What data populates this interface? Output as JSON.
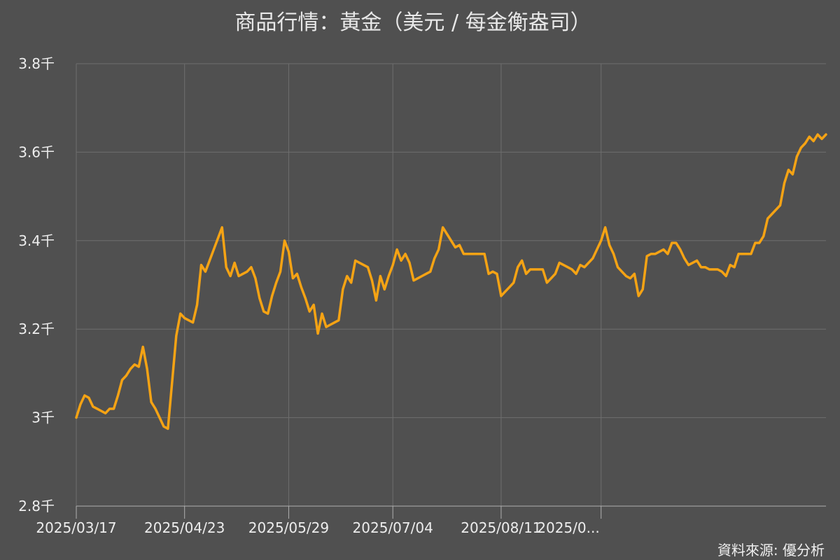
{
  "chart_data": {
    "type": "line",
    "title": "商品行情：黃金（美元 / 每金衡盎司）",
    "source": "資料來源: 優分析",
    "ylim": [
      2.8,
      3.8
    ],
    "y_ticks": [
      {
        "value": 2.8,
        "label": "2.8千"
      },
      {
        "value": 3.0,
        "label": "3千"
      },
      {
        "value": 3.2,
        "label": "3.2千"
      },
      {
        "value": 3.4,
        "label": "3.4千"
      },
      {
        "value": 3.6,
        "label": "3.6千"
      },
      {
        "value": 3.8,
        "label": "3.8千"
      }
    ],
    "x_ticks": [
      {
        "index": 0,
        "label": "2025/03/17"
      },
      {
        "index": 26,
        "label": "2025/04/23"
      },
      {
        "index": 51,
        "label": "2025/05/29"
      },
      {
        "index": 76,
        "label": "2025/07/04"
      },
      {
        "index": 102,
        "label": "2025/08/11"
      },
      {
        "index": 126,
        "label": "2025/0..."
      }
    ],
    "grid": true,
    "line_color": "#F5A314",
    "series": [
      {
        "values": [
          3.0,
          3.03,
          3.05,
          3.045,
          3.025,
          3.02,
          3.015,
          3.01,
          3.02,
          3.02,
          3.05,
          3.085,
          3.095,
          3.11,
          3.12,
          3.115,
          3.16,
          3.11,
          3.035,
          3.02,
          3.0,
          2.98,
          2.975,
          3.08,
          3.185,
          3.235,
          3.225,
          3.22,
          3.215,
          3.255,
          3.345,
          3.33,
          3.355,
          3.38,
          3.405,
          3.43,
          3.34,
          3.32,
          3.35,
          3.32,
          3.325,
          3.33,
          3.34,
          3.315,
          3.27,
          3.24,
          3.235,
          3.275,
          3.305,
          3.33,
          3.4,
          3.375,
          3.315,
          3.325,
          3.295,
          3.27,
          3.24,
          3.255,
          3.19,
          3.235,
          3.205,
          3.21,
          3.215,
          3.22,
          3.29,
          3.32,
          3.305,
          3.355,
          3.35,
          3.345,
          3.34,
          3.31,
          3.265,
          3.32,
          3.29,
          3.32,
          3.345,
          3.38,
          3.355,
          3.37,
          3.35,
          3.31,
          3.315,
          3.32,
          3.325,
          3.33,
          3.36,
          3.38,
          3.43,
          3.415,
          3.4,
          3.385,
          3.39,
          3.37,
          3.37,
          3.37,
          3.37,
          3.37,
          3.37,
          3.325,
          3.33,
          3.325,
          3.275,
          3.285,
          3.295,
          3.305,
          3.34,
          3.355,
          3.325,
          3.335,
          3.335,
          3.335,
          3.335,
          3.305,
          3.315,
          3.325,
          3.35,
          3.345,
          3.34,
          3.335,
          3.325,
          3.345,
          3.34,
          3.35,
          3.36,
          3.38,
          3.4,
          3.43,
          3.39,
          3.37,
          3.34,
          3.33,
          3.32,
          3.315,
          3.325,
          3.275,
          3.29,
          3.365,
          3.37,
          3.37,
          3.375,
          3.38,
          3.37,
          3.395,
          3.395,
          3.38,
          3.36,
          3.345,
          3.35,
          3.355,
          3.34,
          3.34,
          3.335,
          3.335,
          3.335,
          3.33,
          3.32,
          3.345,
          3.34,
          3.37,
          3.37,
          3.37,
          3.37,
          3.395,
          3.395,
          3.41,
          3.45,
          3.46,
          3.47,
          3.48,
          3.53,
          3.56,
          3.55,
          3.59,
          3.61,
          3.62,
          3.635,
          3.625,
          3.64,
          3.63,
          3.64
        ]
      }
    ]
  }
}
